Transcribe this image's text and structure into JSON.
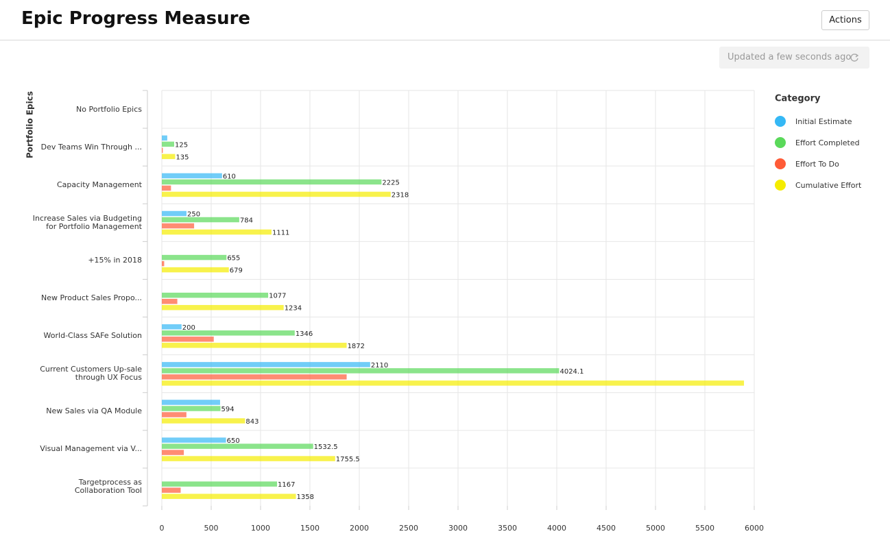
{
  "header": {
    "title": "Epic Progress Measure",
    "action": "Actions"
  },
  "status": "Updated a few seconds ago",
  "chart_data": {
    "type": "bar",
    "orientation": "horizontal",
    "y_axis_title": "Portfolio Epics",
    "legend_title": "Category",
    "legend_position": "right",
    "grid": true,
    "categories": [
      "No Portfolio Epics",
      "Dev Teams Win Through ...",
      "Capacity Management",
      "Increase Sales via Budgeting\nfor Portfolio Management",
      "+15% in 2018",
      "New Product Sales Propo...",
      "World-Class SAFe Solution",
      "Current Customers Up-sale\nthrough UX Focus",
      "New Sales via QA Module",
      "Visual Management via V...",
      "Targetprocess as\nCollaboration Tool"
    ],
    "series": [
      {
        "name": "Initial Estimate",
        "color": "#35b8f5",
        "values": [
          null,
          55,
          610,
          250,
          null,
          null,
          200,
          2110,
          590,
          650,
          null
        ],
        "value_labels": [
          null,
          null,
          "610",
          "250",
          null,
          null,
          "200",
          "2110",
          null,
          "650",
          null
        ]
      },
      {
        "name": "Effort Completed",
        "color": "#5ad95a",
        "values": [
          null,
          125,
          2225,
          784,
          655,
          1077,
          1346,
          4024.1,
          594,
          1532.5,
          1167
        ],
        "value_labels": [
          null,
          "125",
          "2225",
          "784",
          "655",
          "1077",
          "1346",
          "4024.1",
          "594",
          "1532.5",
          "1167"
        ]
      },
      {
        "name": "Effort To Do",
        "color": "#ff5b37",
        "values": [
          null,
          10,
          93,
          327,
          24,
          157,
          526,
          1872,
          249,
          223,
          191
        ],
        "value_labels": [
          null,
          null,
          null,
          null,
          null,
          null,
          null,
          null,
          null,
          null,
          null
        ]
      },
      {
        "name": "Cumulative Effort",
        "color": "#f5ec00",
        "values": [
          null,
          135,
          2318,
          1111,
          679,
          1234,
          1872,
          5896.1,
          843,
          1755.5,
          1358
        ],
        "value_labels": [
          null,
          "135",
          "2318",
          "1111",
          "679",
          "1234",
          "1872",
          null,
          "843",
          "1755.5",
          "1358"
        ]
      }
    ],
    "xlim": [
      0,
      6000
    ],
    "xticks": [
      0,
      500,
      1000,
      1500,
      2000,
      2500,
      3000,
      3500,
      4000,
      4500,
      5000,
      5500,
      6000
    ]
  }
}
